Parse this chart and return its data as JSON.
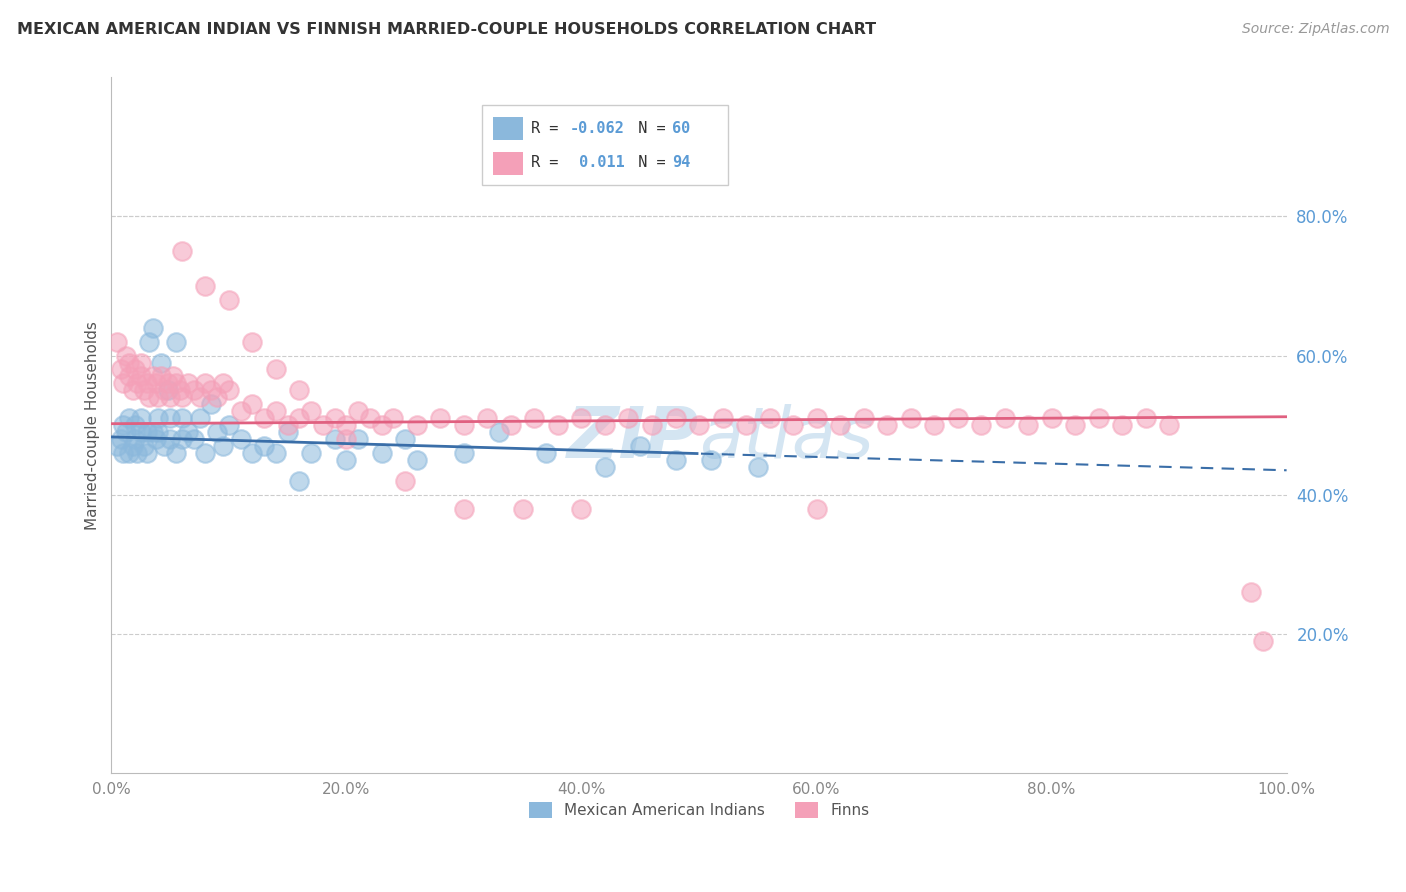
{
  "title": "MEXICAN AMERICAN INDIAN VS FINNISH MARRIED-COUPLE HOUSEHOLDS CORRELATION CHART",
  "source": "Source: ZipAtlas.com",
  "ylabel": "Married-couple Households",
  "legend_labels": [
    "Mexican American Indians",
    "Finns"
  ],
  "r_blue": -0.062,
  "n_blue": 60,
  "r_pink": 0.011,
  "n_pink": 94,
  "xlim": [
    0.0,
    1.0
  ],
  "ylim": [
    0.0,
    1.0
  ],
  "xticks": [
    0.0,
    0.2,
    0.4,
    0.6,
    0.8,
    1.0
  ],
  "yticks": [
    0.2,
    0.4,
    0.6,
    0.8
  ],
  "xticklabels": [
    "0.0%",
    "20.0%",
    "40.0%",
    "60.0%",
    "80.0%",
    "100.0%"
  ],
  "yticklabels": [
    "20.0%",
    "40.0%",
    "60.0%",
    "80.0%"
  ],
  "blue_color": "#8BB8DC",
  "pink_color": "#F4A0B8",
  "blue_line_color": "#3A6EA8",
  "pink_line_color": "#E06080",
  "tick_label_color": "#5B9BD5",
  "background_color": "#FFFFFF",
  "grid_color": "#CCCCCC",
  "watermark_color": "#B8D4EA",
  "blue_x": [
    0.005,
    0.008,
    0.01,
    0.01,
    0.012,
    0.015,
    0.015,
    0.018,
    0.02,
    0.02,
    0.022,
    0.025,
    0.025,
    0.028,
    0.03,
    0.03,
    0.032,
    0.035,
    0.035,
    0.038,
    0.04,
    0.04,
    0.042,
    0.045,
    0.048,
    0.05,
    0.05,
    0.055,
    0.055,
    0.06,
    0.06,
    0.065,
    0.07,
    0.075,
    0.08,
    0.085,
    0.09,
    0.095,
    0.1,
    0.11,
    0.12,
    0.13,
    0.14,
    0.15,
    0.16,
    0.17,
    0.19,
    0.2,
    0.21,
    0.23,
    0.25,
    0.26,
    0.3,
    0.33,
    0.37,
    0.42,
    0.45,
    0.48,
    0.51,
    0.55
  ],
  "blue_y": [
    0.47,
    0.48,
    0.5,
    0.46,
    0.49,
    0.46,
    0.51,
    0.47,
    0.48,
    0.5,
    0.46,
    0.49,
    0.51,
    0.47,
    0.46,
    0.49,
    0.62,
    0.49,
    0.64,
    0.48,
    0.49,
    0.51,
    0.59,
    0.47,
    0.55,
    0.48,
    0.51,
    0.62,
    0.46,
    0.48,
    0.51,
    0.49,
    0.48,
    0.51,
    0.46,
    0.53,
    0.49,
    0.47,
    0.5,
    0.48,
    0.46,
    0.47,
    0.46,
    0.49,
    0.42,
    0.46,
    0.48,
    0.45,
    0.48,
    0.46,
    0.48,
    0.45,
    0.46,
    0.49,
    0.46,
    0.44,
    0.47,
    0.45,
    0.45,
    0.44
  ],
  "pink_x": [
    0.005,
    0.008,
    0.01,
    0.012,
    0.015,
    0.015,
    0.018,
    0.02,
    0.022,
    0.025,
    0.025,
    0.028,
    0.03,
    0.032,
    0.035,
    0.038,
    0.04,
    0.042,
    0.045,
    0.048,
    0.05,
    0.052,
    0.055,
    0.058,
    0.06,
    0.065,
    0.07,
    0.075,
    0.08,
    0.085,
    0.09,
    0.095,
    0.1,
    0.11,
    0.12,
    0.13,
    0.14,
    0.15,
    0.16,
    0.17,
    0.18,
    0.19,
    0.2,
    0.21,
    0.22,
    0.23,
    0.24,
    0.26,
    0.28,
    0.3,
    0.32,
    0.34,
    0.36,
    0.38,
    0.4,
    0.42,
    0.44,
    0.46,
    0.48,
    0.5,
    0.52,
    0.54,
    0.56,
    0.58,
    0.6,
    0.62,
    0.64,
    0.66,
    0.68,
    0.7,
    0.72,
    0.74,
    0.76,
    0.78,
    0.8,
    0.82,
    0.84,
    0.86,
    0.88,
    0.9,
    0.06,
    0.08,
    0.1,
    0.12,
    0.14,
    0.16,
    0.2,
    0.25,
    0.3,
    0.35,
    0.4,
    0.6,
    0.97,
    0.98
  ],
  "pink_y": [
    0.62,
    0.58,
    0.56,
    0.6,
    0.59,
    0.57,
    0.55,
    0.58,
    0.56,
    0.57,
    0.59,
    0.55,
    0.56,
    0.54,
    0.57,
    0.56,
    0.54,
    0.57,
    0.55,
    0.56,
    0.54,
    0.57,
    0.56,
    0.55,
    0.54,
    0.56,
    0.55,
    0.54,
    0.56,
    0.55,
    0.54,
    0.56,
    0.55,
    0.52,
    0.53,
    0.51,
    0.52,
    0.5,
    0.51,
    0.52,
    0.5,
    0.51,
    0.5,
    0.52,
    0.51,
    0.5,
    0.51,
    0.5,
    0.51,
    0.5,
    0.51,
    0.5,
    0.51,
    0.5,
    0.51,
    0.5,
    0.51,
    0.5,
    0.51,
    0.5,
    0.51,
    0.5,
    0.51,
    0.5,
    0.51,
    0.5,
    0.51,
    0.5,
    0.51,
    0.5,
    0.51,
    0.5,
    0.51,
    0.5,
    0.51,
    0.5,
    0.51,
    0.5,
    0.51,
    0.5,
    0.75,
    0.7,
    0.68,
    0.62,
    0.58,
    0.55,
    0.48,
    0.42,
    0.38,
    0.38,
    0.38,
    0.38,
    0.26,
    0.19
  ]
}
